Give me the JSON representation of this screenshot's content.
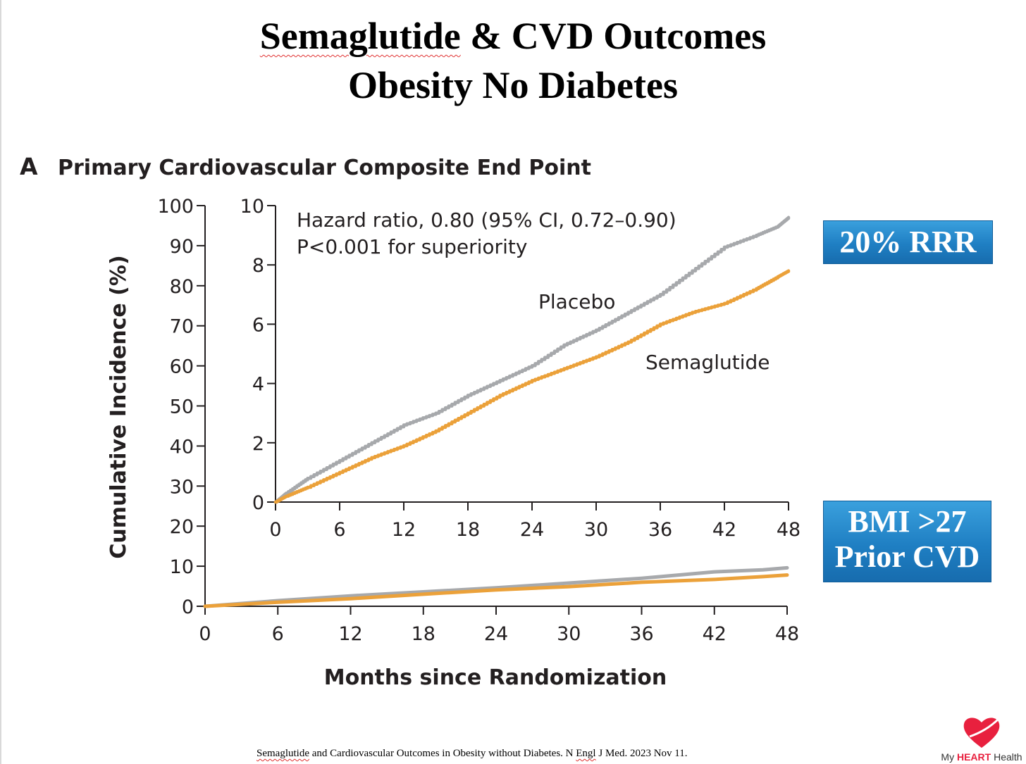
{
  "slide": {
    "title_line1_word1": "Semaglutide",
    "title_line1_rest": " & CVD Outcomes",
    "title_line2": "Obesity No Diabetes"
  },
  "callouts": {
    "rrr": "20% RRR",
    "bmi_line1": "BMI >27",
    "bmi_line2": "Prior CVD"
  },
  "citation": {
    "word1": "Semaglutide",
    "mid": " and Cardiovascular Outcomes in Obesity without Diabetes. N ",
    "word2": "Engl",
    "end": " J Med. 2023 Nov 11."
  },
  "logo": {
    "prefix": "My ",
    "brand": "HEART",
    "suffix": " Health",
    "icon": "heart-icon"
  },
  "chart_data": [
    {
      "panel": "main",
      "type": "line",
      "panel_letter": "A",
      "title": "Primary Cardiovascular Composite End Point",
      "xlabel": "Months since Randomization",
      "ylabel": "Cumulative Incidence (%)",
      "xlim": [
        0,
        48
      ],
      "ylim": [
        0,
        100
      ],
      "x_ticks": [
        0,
        6,
        12,
        18,
        24,
        30,
        36,
        42,
        48
      ],
      "y_ticks": [
        0,
        10,
        20,
        30,
        40,
        50,
        60,
        70,
        80,
        90,
        100
      ],
      "x_tick_labels": [
        "0",
        "6",
        "12",
        "18",
        "24",
        "30",
        "36",
        "42",
        "48"
      ],
      "y_tick_labels": [
        "0",
        "10",
        "20",
        "30",
        "40",
        "50",
        "60",
        "70",
        "80",
        "90",
        "100"
      ],
      "series": [
        {
          "name": "Placebo",
          "color": "#a7a9ac",
          "x": [
            0,
            6,
            12,
            18,
            24,
            30,
            36,
            42,
            46,
            48
          ],
          "y": [
            0,
            1.4,
            2.6,
            3.6,
            4.6,
            5.8,
            7.0,
            8.6,
            9.1,
            9.6
          ]
        },
        {
          "name": "Semaglutide",
          "color": "#eba13a",
          "x": [
            0,
            6,
            12,
            18,
            24,
            30,
            36,
            42,
            46,
            48
          ],
          "y": [
            0,
            1.0,
            1.9,
            3.0,
            4.1,
            4.9,
            6.0,
            6.7,
            7.4,
            7.8
          ]
        }
      ]
    },
    {
      "panel": "inset",
      "type": "line",
      "xlim": [
        0,
        48
      ],
      "ylim": [
        0,
        10
      ],
      "x_ticks": [
        0,
        6,
        12,
        18,
        24,
        30,
        36,
        42,
        48
      ],
      "y_ticks": [
        0,
        2,
        4,
        6,
        8,
        10
      ],
      "x_tick_labels": [
        "0",
        "6",
        "12",
        "18",
        "24",
        "30",
        "36",
        "42",
        "48"
      ],
      "y_tick_labels": [
        "0",
        "2",
        "4",
        "6",
        "8",
        "10"
      ],
      "annotation_line1": "Hazard ratio, 0.80 (95% CI, 0.72–0.90)",
      "annotation_line2": "P<0.001 for superiority",
      "series_labels": [
        "Placebo",
        "Semaglutide"
      ],
      "series": [
        {
          "name": "Placebo",
          "color": "#a7a9ac",
          "x": [
            0,
            1,
            3,
            6,
            9,
            12,
            15,
            18,
            21,
            24,
            27,
            30,
            33,
            36,
            39,
            42,
            45,
            47,
            48
          ],
          "y": [
            0,
            0.3,
            0.8,
            1.4,
            2.0,
            2.6,
            3.0,
            3.6,
            4.1,
            4.6,
            5.3,
            5.8,
            6.4,
            7.0,
            7.8,
            8.6,
            9.0,
            9.3,
            9.6
          ]
        },
        {
          "name": "Semaglutide",
          "color": "#eba13a",
          "x": [
            0,
            1,
            3,
            6,
            9,
            12,
            15,
            18,
            21,
            24,
            27,
            30,
            33,
            36,
            39,
            42,
            45,
            47,
            48
          ],
          "y": [
            0,
            0.2,
            0.5,
            1.0,
            1.5,
            1.9,
            2.4,
            3.0,
            3.6,
            4.1,
            4.5,
            4.9,
            5.4,
            6.0,
            6.4,
            6.7,
            7.2,
            7.6,
            7.8
          ]
        }
      ]
    }
  ]
}
